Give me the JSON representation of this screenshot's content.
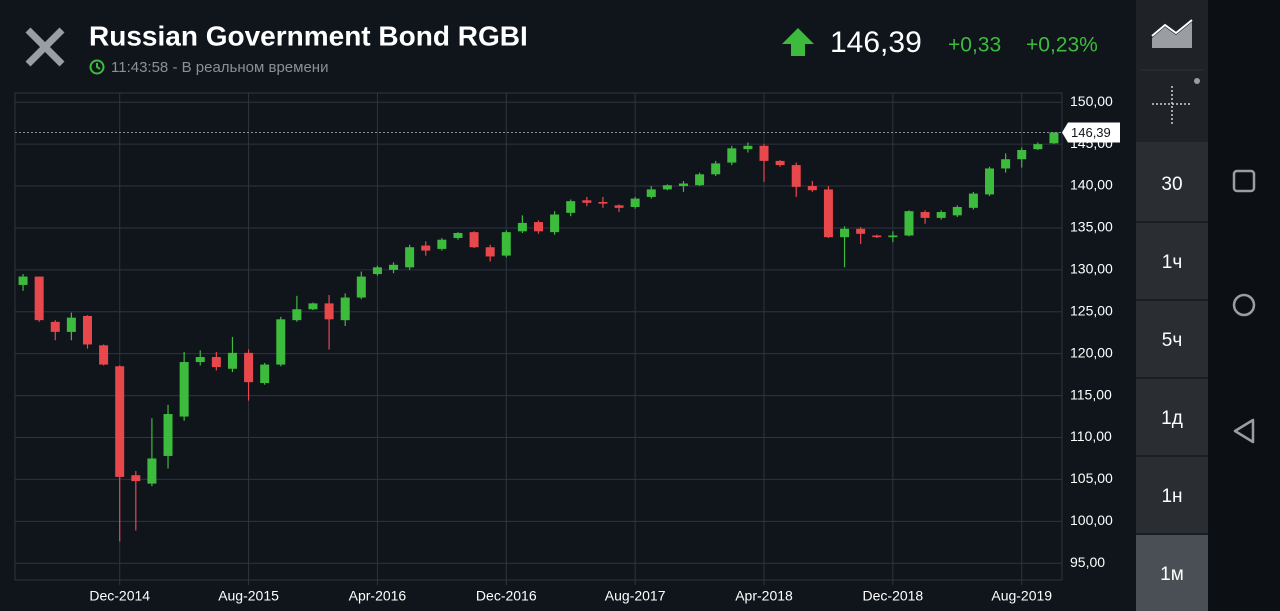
{
  "header": {
    "title": "Russian Government Bond RGBI",
    "status": "11:43:58 - В реальном времени",
    "price": "146,39",
    "change": "+0,33",
    "change_percent": "+0,23%"
  },
  "sidebar": {
    "intervals": [
      "30",
      "1ч",
      "5ч",
      "1д",
      "1н",
      "1м"
    ],
    "selected": "1м"
  },
  "chart_data": {
    "type": "candlestick",
    "x": [
      "2014-06",
      "2014-07",
      "2014-08",
      "2014-09",
      "2014-10",
      "2014-11",
      "2014-12",
      "2015-01",
      "2015-02",
      "2015-03",
      "2015-04",
      "2015-05",
      "2015-06",
      "2015-07",
      "2015-08",
      "2015-09",
      "2015-10",
      "2015-11",
      "2015-12",
      "2016-01",
      "2016-02",
      "2016-03",
      "2016-04",
      "2016-05",
      "2016-06",
      "2016-07",
      "2016-08",
      "2016-09",
      "2016-10",
      "2016-11",
      "2016-12",
      "2017-01",
      "2017-02",
      "2017-03",
      "2017-04",
      "2017-05",
      "2017-06",
      "2017-07",
      "2017-08",
      "2017-09",
      "2017-10",
      "2017-11",
      "2017-12",
      "2018-01",
      "2018-02",
      "2018-03",
      "2018-04",
      "2018-05",
      "2018-06",
      "2018-07",
      "2018-08",
      "2018-09",
      "2018-10",
      "2018-11",
      "2018-12",
      "2019-01",
      "2019-02",
      "2019-03",
      "2019-04",
      "2019-05",
      "2019-06",
      "2019-07",
      "2019-08",
      "2019-09",
      "2019-10"
    ],
    "open": [
      128.2,
      129.2,
      123.8,
      122.6,
      124.5,
      121,
      118.5,
      105.5,
      104.5,
      107.8,
      112.5,
      119,
      119.6,
      118.2,
      120.1,
      116.5,
      118.7,
      124,
      125.3,
      126,
      124,
      126.7,
      129.5,
      130,
      130.3,
      132.9,
      132.5,
      133.8,
      134.5,
      132.7,
      131.7,
      134.6,
      135.7,
      134.5,
      136.8,
      138.3,
      138.1,
      137.7,
      137.5,
      138.7,
      139.6,
      140,
      140.1,
      141.4,
      142.8,
      144.4,
      144.8,
      143,
      142.5,
      140,
      139.6,
      133.9,
      134.9,
      134.1,
      133.9,
      134.1,
      136.9,
      136.2,
      136.5,
      137.4,
      139,
      142.1,
      143.2,
      144.4,
      145.1
    ],
    "high": [
      129.5,
      129.2,
      124,
      124.9,
      124.6,
      121.1,
      118.6,
      106,
      112.3,
      113.9,
      120.2,
      120.4,
      120.2,
      122,
      120.5,
      118.9,
      124.4,
      126.9,
      126.1,
      127,
      127.2,
      129.8,
      130.5,
      130.9,
      133,
      133.4,
      133.8,
      134.5,
      134.6,
      133,
      134.7,
      136.5,
      135.9,
      137,
      138.4,
      138.7,
      138.7,
      137.8,
      138.7,
      140,
      140.2,
      140.6,
      141.6,
      143,
      144.8,
      145.2,
      145,
      143.1,
      142.8,
      140.6,
      140,
      135.2,
      135.1,
      134.2,
      134.6,
      137.1,
      137.1,
      137.1,
      137.7,
      139.3,
      142.3,
      143.9,
      144.6,
      145.2,
      146.4
    ],
    "low": [
      127.5,
      123.8,
      121.6,
      121.6,
      120.6,
      118.6,
      97.6,
      98.9,
      104.2,
      106.3,
      112,
      118.6,
      118,
      117.8,
      114.4,
      116.3,
      118.5,
      123.8,
      125.2,
      120.5,
      123.3,
      126.5,
      129.3,
      129.6,
      130,
      131.7,
      132.3,
      133.6,
      132.6,
      131,
      131.5,
      134.4,
      134.3,
      134.2,
      136.4,
      137.6,
      137.4,
      136.9,
      137.3,
      138.5,
      139.5,
      139.3,
      140,
      141.2,
      142.5,
      144,
      140.5,
      142.3,
      138.7,
      139.3,
      133.8,
      130.3,
      133.1,
      133.8,
      133.3,
      134,
      135.5,
      136,
      136.3,
      137.2,
      138.8,
      141.6,
      142.2,
      144.3,
      145
    ],
    "close": [
      129.2,
      124,
      122.6,
      124.3,
      121.1,
      118.7,
      105.3,
      104.8,
      107.5,
      112.8,
      119,
      119.6,
      118.4,
      120.1,
      116.6,
      118.7,
      124.1,
      125.3,
      126,
      124.1,
      126.7,
      129.2,
      130.3,
      130.6,
      132.7,
      132.3,
      133.6,
      134.4,
      132.7,
      131.6,
      134.5,
      135.6,
      134.6,
      136.6,
      138.2,
      138,
      137.9,
      137.4,
      138.5,
      139.6,
      140.1,
      140.3,
      141.4,
      142.7,
      144.5,
      144.8,
      143,
      142.5,
      139.9,
      139.5,
      133.9,
      134.9,
      134.3,
      133.9,
      134.1,
      137,
      136.2,
      136.9,
      137.5,
      139.1,
      142.1,
      143.2,
      144.3,
      145,
      146.39
    ],
    "up_color": "#3dbb3d",
    "down_color": "#e8474b",
    "current_price": {
      "value": 146.39,
      "label": "146,39"
    },
    "ylim": [
      93,
      151.1
    ],
    "yticks": [
      {
        "value": 95,
        "label": "95,00"
      },
      {
        "value": 100,
        "label": "100,00"
      },
      {
        "value": 105,
        "label": "105,00"
      },
      {
        "value": 110,
        "label": "110,00"
      },
      {
        "value": 115,
        "label": "115,00"
      },
      {
        "value": 120,
        "label": "120,00"
      },
      {
        "value": 125,
        "label": "125,00"
      },
      {
        "value": 130,
        "label": "130,00"
      },
      {
        "value": 135,
        "label": "135,00"
      },
      {
        "value": 140,
        "label": "140,00"
      },
      {
        "value": 145,
        "label": "145,00"
      },
      {
        "value": 150,
        "label": "150,00"
      }
    ],
    "xticks": [
      {
        "value": "2014-12",
        "label": "Dec-2014"
      },
      {
        "value": "2015-08",
        "label": "Aug-2015"
      },
      {
        "value": "2016-04",
        "label": "Apr-2016"
      },
      {
        "value": "2016-12",
        "label": "Dec-2016"
      },
      {
        "value": "2017-08",
        "label": "Aug-2017"
      },
      {
        "value": "2018-04",
        "label": "Apr-2018"
      },
      {
        "value": "2018-12",
        "label": "Dec-2018"
      },
      {
        "value": "2019-08",
        "label": "Aug-2019"
      }
    ],
    "grid": true
  }
}
